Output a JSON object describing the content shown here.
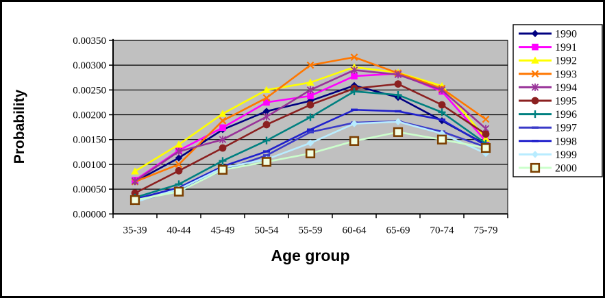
{
  "figure": {
    "y_axis_title": "Probability",
    "x_axis_title": "Age group"
  },
  "chart_data": {
    "type": "line",
    "title": "",
    "xlabel": "Age group",
    "ylabel": "Probability",
    "categories": [
      "35-39",
      "40-44",
      "45-49",
      "50-54",
      "55-59",
      "60-64",
      "65-69",
      "70-74",
      "75-79"
    ],
    "y_tick_labels": [
      "0.00350",
      "0.00300",
      "0.00250",
      "0.00200",
      "0.00150",
      "0.00100",
      "0.00050",
      "0.00000"
    ],
    "ylim": [
      0,
      0.0035
    ],
    "y_tick_step": 0.0005,
    "grid": "horizontal",
    "legend_position": "right",
    "plot_bg_color": "#c0c0c0",
    "gridline_color": "#000000",
    "series": [
      {
        "name": "1990",
        "color": "#000080",
        "marker": "diamond",
        "values": [
          0.00065,
          0.00113,
          0.0017,
          0.00207,
          0.00228,
          0.00259,
          0.00235,
          0.00188,
          0.0014
        ]
      },
      {
        "name": "1991",
        "color": "#ff00ff",
        "marker": "square",
        "values": [
          0.00068,
          0.00128,
          0.00174,
          0.00225,
          0.00238,
          0.00278,
          0.00283,
          0.00247,
          0.00147
        ]
      },
      {
        "name": "1992",
        "color": "#ffff00",
        "marker": "triangle",
        "values": [
          0.00086,
          0.0014,
          0.00202,
          0.0025,
          0.00265,
          0.00296,
          0.00285,
          0.00258,
          0.00152
        ]
      },
      {
        "name": "1993",
        "color": "#ff7700",
        "marker": "x",
        "values": [
          0.00065,
          0.001,
          0.00188,
          0.00234,
          0.003,
          0.00316,
          0.00284,
          0.00253,
          0.00191
        ]
      },
      {
        "name": "1994",
        "color": "#993399",
        "marker": "asterisk",
        "values": [
          0.00066,
          0.00126,
          0.0015,
          0.00196,
          0.0025,
          0.0029,
          0.00281,
          0.0025,
          0.00172
        ]
      },
      {
        "name": "1995",
        "color": "#8b2020",
        "marker": "circle",
        "values": [
          0.00042,
          0.00087,
          0.00133,
          0.0018,
          0.0022,
          0.00253,
          0.00262,
          0.0022,
          0.00161
        ]
      },
      {
        "name": "1996",
        "color": "#008080",
        "marker": "plus",
        "values": [
          0.00033,
          0.0006,
          0.00107,
          0.00148,
          0.00195,
          0.00247,
          0.0024,
          0.00205,
          0.00142
        ]
      },
      {
        "name": "1997",
        "color": "#3a3ac8",
        "marker": "dash",
        "values": [
          0.00025,
          0.00048,
          0.00088,
          0.00118,
          0.00165,
          0.00184,
          0.00187,
          0.00166,
          0.00135
        ]
      },
      {
        "name": "1998",
        "color": "#2020cc",
        "marker": "dash",
        "values": [
          0.0003,
          0.00053,
          0.00096,
          0.00126,
          0.0017,
          0.0021,
          0.00207,
          0.0019,
          0.00138
        ]
      },
      {
        "name": "1999",
        "color": "#b8ecff",
        "marker": "diamond",
        "values": [
          0.00024,
          0.0005,
          0.00093,
          0.0011,
          0.00143,
          0.00182,
          0.00186,
          0.00162,
          0.00122
        ]
      },
      {
        "name": "2000",
        "color": "#ccffcc",
        "marker": "opensquare",
        "marker_edge": "#7b3f00",
        "marker_fill": "#f2ffe2",
        "values": [
          0.00028,
          0.00045,
          0.00089,
          0.00105,
          0.00122,
          0.00147,
          0.00165,
          0.0015,
          0.00133
        ]
      }
    ]
  }
}
